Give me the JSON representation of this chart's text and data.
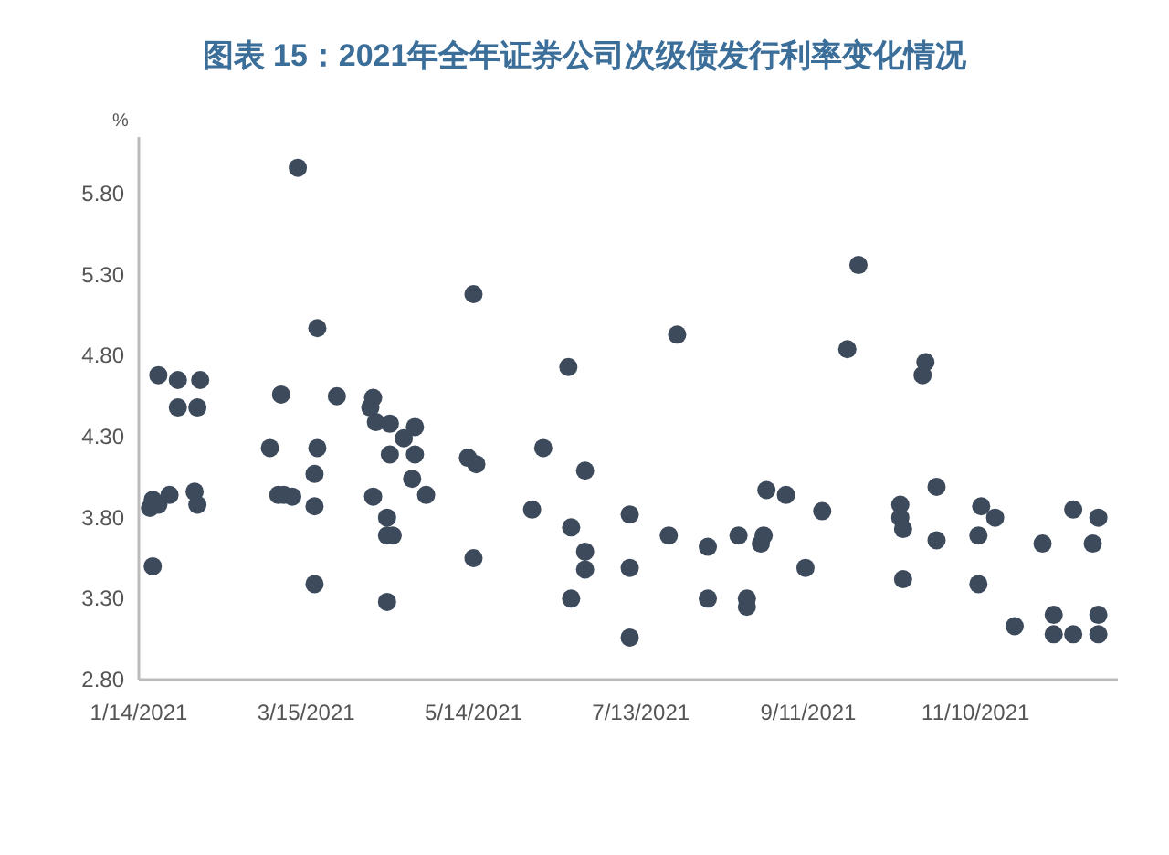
{
  "chart_data": {
    "type": "scatter",
    "title": "图表 15：2021年全年证券公司次级债发行利率变化情况",
    "ylabel": "%",
    "marker": "circle",
    "xlim": [
      "2021-01-14",
      "2021-12-31"
    ],
    "xticks": [
      {
        "value": "2021-01-14",
        "label": "1/14/2021"
      },
      {
        "value": "2021-03-15",
        "label": "3/15/2021"
      },
      {
        "value": "2021-05-14",
        "label": "5/14/2021"
      },
      {
        "value": "2021-07-13",
        "label": "7/13/2021"
      },
      {
        "value": "2021-09-11",
        "label": "9/11/2021"
      },
      {
        "value": "2021-11-10",
        "label": "11/10/2021"
      }
    ],
    "ylim": [
      2.8,
      6.15
    ],
    "yticks": [
      {
        "value": 2.8,
        "label": "2.80"
      },
      {
        "value": 3.3,
        "label": "3.30"
      },
      {
        "value": 3.8,
        "label": "3.80"
      },
      {
        "value": 4.3,
        "label": "4.30"
      },
      {
        "value": 4.8,
        "label": "4.80"
      },
      {
        "value": 5.3,
        "label": "5.30"
      },
      {
        "value": 5.8,
        "label": "5.80"
      }
    ],
    "series": [
      {
        "color": "#3d4a5c",
        "x": [
          "2021-01-19",
          "2021-01-18",
          "2021-01-19",
          "2021-01-21",
          "2021-01-25",
          "2021-01-21",
          "2021-01-28",
          "2021-01-28",
          "2021-02-05",
          "2021-02-04",
          "2021-02-03",
          "2021-02-04",
          "2021-03-02",
          "2021-03-06",
          "2021-03-05",
          "2021-03-07",
          "2021-03-10",
          "2021-03-12",
          "2021-03-18",
          "2021-03-18",
          "2021-03-19",
          "2021-03-19",
          "2021-03-18",
          "2021-03-26",
          "2021-04-08",
          "2021-04-07",
          "2021-04-09",
          "2021-04-08",
          "2021-04-14",
          "2021-04-14",
          "2021-04-13",
          "2021-04-13",
          "2021-04-15",
          "2021-04-13",
          "2021-04-19",
          "2021-04-23",
          "2021-04-23",
          "2021-04-22",
          "2021-04-27",
          "2021-05-14",
          "2021-05-12",
          "2021-05-15",
          "2021-05-14",
          "2021-06-08",
          "2021-06-04",
          "2021-06-17",
          "2021-06-18",
          "2021-06-23",
          "2021-06-23",
          "2021-06-23",
          "2021-06-18",
          "2021-07-09",
          "2021-07-09",
          "2021-07-09",
          "2021-07-26",
          "2021-07-23",
          "2021-08-06",
          "2021-08-06",
          "2021-08-17",
          "2021-08-20",
          "2021-08-20",
          "2021-08-27",
          "2021-08-25",
          "2021-08-26",
          "2021-09-03",
          "2021-09-10",
          "2021-09-16",
          "2021-09-25",
          "2021-09-29",
          "2021-10-14",
          "2021-10-14",
          "2021-10-15",
          "2021-10-15",
          "2021-10-23",
          "2021-10-22",
          "2021-10-27",
          "2021-10-27",
          "2021-11-11",
          "2021-11-11",
          "2021-11-12",
          "2021-11-17",
          "2021-11-24",
          "2021-12-04",
          "2021-12-08",
          "2021-12-08",
          "2021-12-15",
          "2021-12-15",
          "2021-12-24",
          "2021-12-22",
          "2021-12-24",
          "2021-12-24"
        ],
        "values": [
          3.5,
          3.86,
          3.91,
          3.88,
          3.94,
          4.68,
          4.65,
          4.48,
          4.65,
          4.48,
          3.96,
          3.88,
          4.23,
          4.56,
          3.94,
          3.94,
          3.93,
          5.96,
          3.87,
          4.07,
          4.23,
          4.97,
          3.39,
          4.55,
          4.54,
          4.48,
          4.39,
          3.93,
          4.38,
          4.19,
          3.8,
          3.69,
          3.69,
          3.28,
          4.29,
          4.36,
          4.19,
          4.04,
          3.94,
          5.18,
          4.17,
          4.13,
          3.55,
          4.23,
          3.85,
          4.73,
          3.74,
          4.09,
          3.59,
          3.48,
          3.3,
          3.82,
          3.49,
          3.06,
          4.93,
          3.69,
          3.62,
          3.3,
          3.69,
          3.3,
          3.25,
          3.97,
          3.64,
          3.69,
          3.94,
          3.49,
          3.84,
          4.84,
          5.36,
          3.88,
          3.8,
          3.73,
          3.42,
          4.76,
          4.68,
          3.99,
          3.66,
          3.69,
          3.39,
          3.87,
          3.8,
          3.13,
          3.64,
          3.2,
          3.08,
          3.08,
          3.85,
          3.8,
          3.64,
          3.2,
          3.08
        ]
      }
    ]
  }
}
